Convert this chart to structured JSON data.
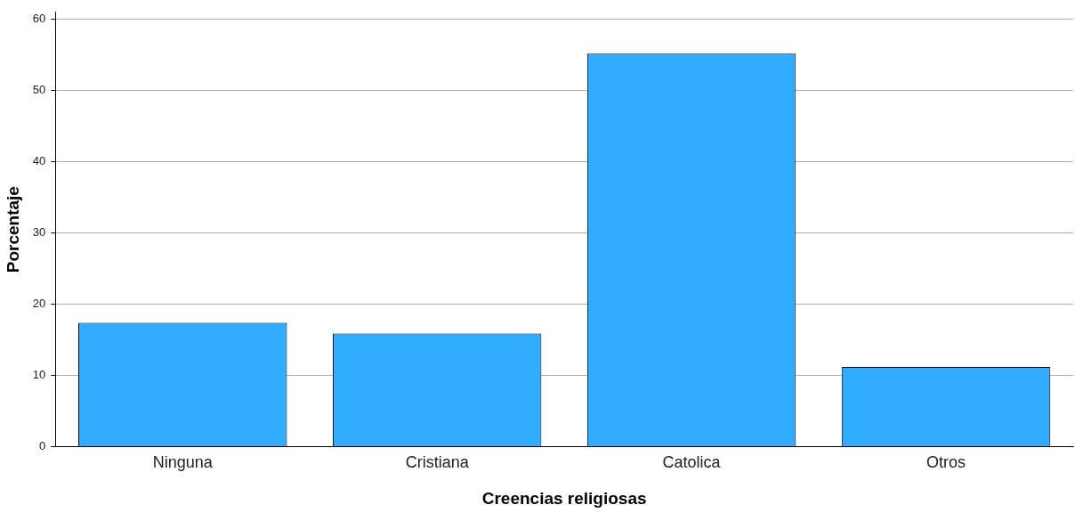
{
  "chart_data": {
    "type": "bar",
    "xlabel": "Creencias religiosas",
    "ylabel": "Porcentaje",
    "categories": [
      "Ninguna",
      "Cristiana",
      "Catolica",
      "Otros"
    ],
    "values": [
      17.4,
      15.9,
      55.2,
      11.2
    ],
    "color": "#31adff",
    "ylim": [
      0,
      61
    ],
    "yticks": [
      0,
      10,
      20,
      30,
      40,
      50,
      60
    ],
    "grid": "y",
    "legend": false
  }
}
